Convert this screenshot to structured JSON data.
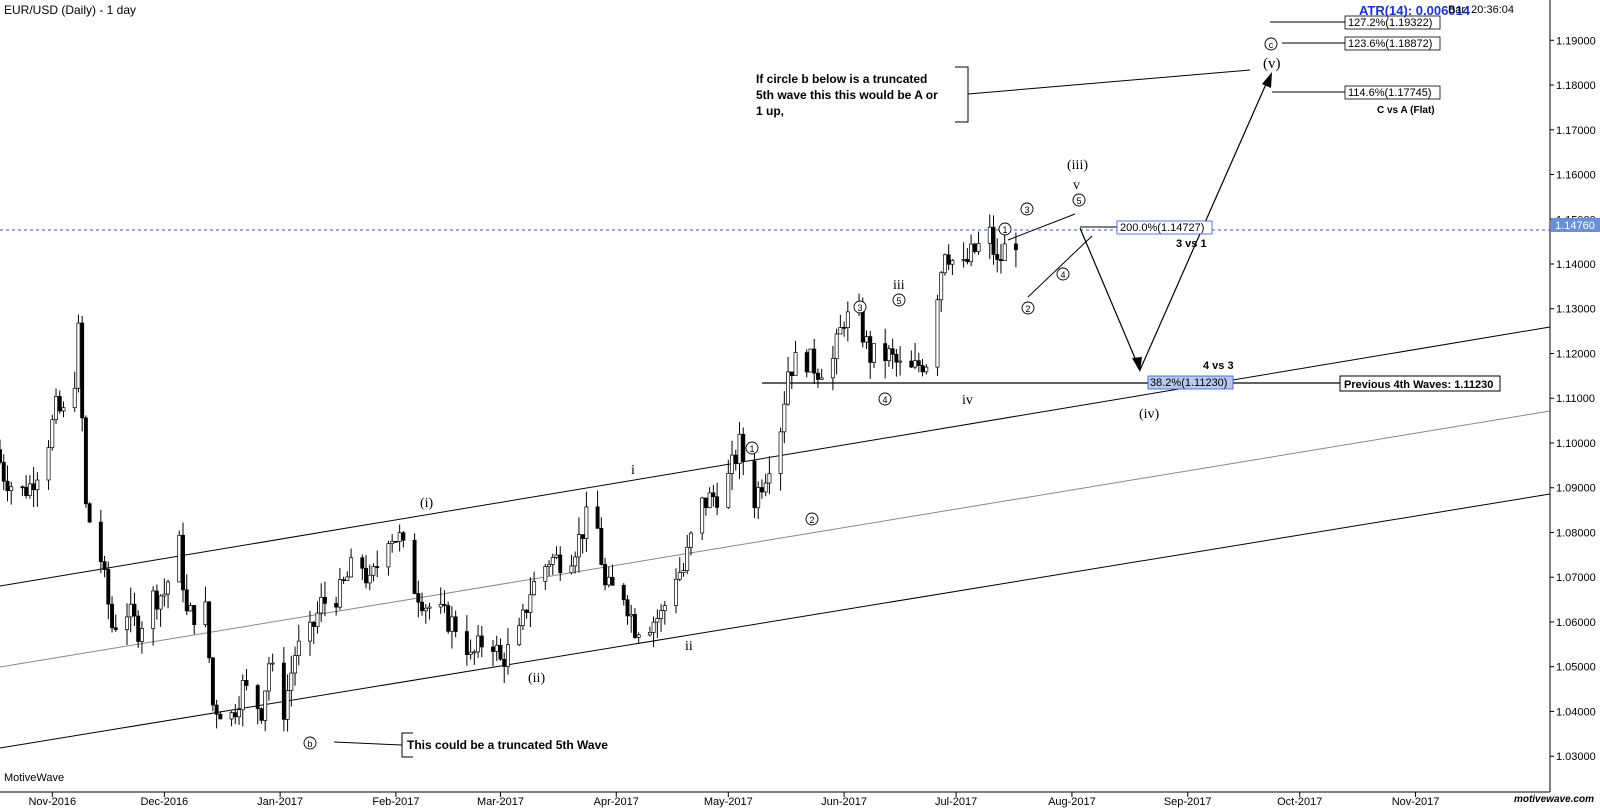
{
  "header": {
    "title": "EUR/USD (Daily) - 1 day",
    "atr": "ATR(14): 0.006014",
    "bar_time": "Bar: 20:36:04"
  },
  "footer": {
    "brand": "MotiveWave",
    "domain": "motivewave.com"
  },
  "colors": {
    "bull": "#ffffff",
    "bear": "#000000",
    "price_line": "#3355dd",
    "price_badge": "#6b8fd6",
    "fib_badge": "#b8c8ee",
    "channel": "#000000",
    "mid_channel": "#888888"
  },
  "chart_data": {
    "type": "candlestick",
    "title": "EUR/USD (Daily) - 1 day",
    "xlabel": "",
    "ylabel": "",
    "ylim": [
      1.022,
      1.199
    ],
    "x_range": [
      "2016-10-18",
      "2017-12-07"
    ],
    "grid": false,
    "x_ticks": [
      {
        "date": "2016-11-01",
        "label": "Nov-2016"
      },
      {
        "date": "2016-12-01",
        "label": "Dec-2016"
      },
      {
        "date": "2017-01-01",
        "label": "Jan-2017"
      },
      {
        "date": "2017-02-01",
        "label": "Feb-2017"
      },
      {
        "date": "2017-03-01",
        "label": "Mar-2017"
      },
      {
        "date": "2017-04-01",
        "label": "Apr-2017"
      },
      {
        "date": "2017-05-01",
        "label": "May-2017"
      },
      {
        "date": "2017-06-01",
        "label": "Jun-2017"
      },
      {
        "date": "2017-07-01",
        "label": "Jul-2017"
      },
      {
        "date": "2017-08-01",
        "label": "Aug-2017"
      },
      {
        "date": "2017-09-01",
        "label": "Sep-2017"
      },
      {
        "date": "2017-10-01",
        "label": "Oct-2017"
      },
      {
        "date": "2017-11-01",
        "label": "Nov-2017"
      }
    ],
    "y_ticks": [
      "1.19000",
      "1.18000",
      "1.17000",
      "1.16000",
      "1.15000",
      "1.14000",
      "1.13000",
      "1.12000",
      "1.11000",
      "1.10000",
      "1.09000",
      "1.08000",
      "1.07000",
      "1.06000",
      "1.05000",
      "1.04000",
      "1.03000"
    ],
    "current_price": {
      "value": 1.1476,
      "label": "1.14760"
    },
    "series": [
      {
        "date": "2016-10-18",
        "close": 1.0985
      },
      {
        "date": "2016-10-20",
        "close": 1.093
      },
      {
        "date": "2016-10-24",
        "close": 1.0885
      },
      {
        "date": "2016-10-27",
        "close": 1.0905
      },
      {
        "date": "2016-10-31",
        "close": 1.0975
      },
      {
        "date": "2016-11-03",
        "close": 1.1075
      },
      {
        "date": "2016-11-07",
        "close": 1.105
      },
      {
        "date": "2016-11-09",
        "close": 1.1245
      },
      {
        "date": "2016-11-11",
        "close": 1.0855
      },
      {
        "date": "2016-11-15",
        "close": 1.074
      },
      {
        "date": "2016-11-18",
        "close": 1.059
      },
      {
        "date": "2016-11-22",
        "close": 1.0625
      },
      {
        "date": "2016-11-25",
        "close": 1.0585
      },
      {
        "date": "2016-11-29",
        "close": 1.0655
      },
      {
        "date": "2016-12-02",
        "close": 1.0665
      },
      {
        "date": "2016-12-06",
        "close": 1.077
      },
      {
        "date": "2016-12-08",
        "close": 1.0615
      },
      {
        "date": "2016-12-13",
        "close": 1.0625
      },
      {
        "date": "2016-12-15",
        "close": 1.0415
      },
      {
        "date": "2016-12-20",
        "close": 1.039
      },
      {
        "date": "2016-12-23",
        "close": 1.0455
      },
      {
        "date": "2016-12-28",
        "close": 1.0405
      },
      {
        "date": "2016-12-30",
        "close": 1.051
      },
      {
        "date": "2017-01-03",
        "close": 1.0405
      },
      {
        "date": "2017-01-06",
        "close": 1.053
      },
      {
        "date": "2017-01-10",
        "close": 1.057
      },
      {
        "date": "2017-01-13",
        "close": 1.064
      },
      {
        "date": "2017-01-18",
        "close": 1.0665
      },
      {
        "date": "2017-01-23",
        "close": 1.075
      },
      {
        "date": "2017-01-26",
        "close": 1.068
      },
      {
        "date": "2017-01-31",
        "close": 1.08
      },
      {
        "date": "2017-02-03",
        "close": 1.0785
      },
      {
        "date": "2017-02-07",
        "close": 1.068
      },
      {
        "date": "2017-02-10",
        "close": 1.064
      },
      {
        "date": "2017-02-15",
        "close": 1.061
      },
      {
        "date": "2017-02-20",
        "close": 1.058
      },
      {
        "date": "2017-02-22",
        "close": 1.0515
      },
      {
        "date": "2017-02-27",
        "close": 1.058
      },
      {
        "date": "2017-03-02",
        "close": 1.051
      },
      {
        "date": "2017-03-07",
        "close": 1.057
      },
      {
        "date": "2017-03-10",
        "close": 1.067
      },
      {
        "date": "2017-03-15",
        "close": 1.074
      },
      {
        "date": "2017-03-20",
        "close": 1.074
      },
      {
        "date": "2017-03-23",
        "close": 1.0785
      },
      {
        "date": "2017-03-27",
        "close": 1.087
      },
      {
        "date": "2017-03-30",
        "close": 1.0675
      },
      {
        "date": "2017-04-04",
        "close": 1.0665
      },
      {
        "date": "2017-04-07",
        "close": 1.059
      },
      {
        "date": "2017-04-11",
        "close": 1.06
      },
      {
        "date": "2017-04-14",
        "close": 1.0615
      },
      {
        "date": "2017-04-18",
        "close": 1.071
      },
      {
        "date": "2017-04-20",
        "close": 1.0715
      },
      {
        "date": "2017-04-24",
        "close": 1.0855
      },
      {
        "date": "2017-04-27",
        "close": 1.0875
      },
      {
        "date": "2017-05-01",
        "close": 1.0895
      },
      {
        "date": "2017-05-05",
        "close": 1.0995
      },
      {
        "date": "2017-05-09",
        "close": 1.0875
      },
      {
        "date": "2017-05-12",
        "close": 1.0935
      },
      {
        "date": "2017-05-16",
        "close": 1.104
      },
      {
        "date": "2017-05-18",
        "close": 1.1165
      },
      {
        "date": "2017-05-22",
        "close": 1.1195
      },
      {
        "date": "2017-05-26",
        "close": 1.1165
      },
      {
        "date": "2017-05-30",
        "close": 1.1185
      },
      {
        "date": "2017-06-02",
        "close": 1.128
      },
      {
        "date": "2017-06-06",
        "close": 1.127
      },
      {
        "date": "2017-06-09",
        "close": 1.1195
      },
      {
        "date": "2017-06-14",
        "close": 1.1195
      },
      {
        "date": "2017-06-19",
        "close": 1.115
      },
      {
        "date": "2017-06-22",
        "close": 1.1175
      },
      {
        "date": "2017-06-26",
        "close": 1.1195
      },
      {
        "date": "2017-06-27",
        "close": 1.134
      },
      {
        "date": "2017-06-29",
        "close": 1.144
      },
      {
        "date": "2017-07-03",
        "close": 1.1375
      },
      {
        "date": "2017-07-06",
        "close": 1.142
      },
      {
        "date": "2017-07-11",
        "close": 1.1465
      },
      {
        "date": "2017-07-13",
        "close": 1.1395
      },
      {
        "date": "2017-07-17",
        "close": 1.147
      },
      {
        "date": "2017-07-18",
        "close": 1.1456
      }
    ]
  },
  "annotations": {
    "wave_labels": [
      {
        "id": "wave-i-minor",
        "text": "(i)"
      },
      {
        "id": "wave-ii-minor",
        "text": "(ii)"
      },
      {
        "id": "wave-iii-minor",
        "text": "(iii)"
      },
      {
        "id": "wave-iv-minor",
        "text": "(iv)"
      },
      {
        "id": "wave-v-minor",
        "text": "(v)"
      },
      {
        "id": "wave-i",
        "text": "i"
      },
      {
        "id": "wave-ii",
        "text": "ii"
      },
      {
        "id": "wave-iii",
        "text": "iii"
      },
      {
        "id": "wave-iv",
        "text": "iv"
      },
      {
        "id": "wave-v",
        "text": "v"
      }
    ],
    "circled_labels": [
      "b",
      "1",
      "2",
      "3",
      "4",
      "5",
      "c"
    ],
    "notes": {
      "truncated": "This could be a truncated 5th Wave",
      "alt_line1": "If circle b below is a truncated",
      "alt_line2": "5th wave this this would be A or",
      "alt_line3": "1 up,",
      "prev_4th": "Previous 4th Waves: 1.11230",
      "three_vs_one": "3 vs 1",
      "four_vs_three": "4 vs 3",
      "c_vs_a": "C vs A (Flat)"
    },
    "fibs": {
      "f1272": "127.2%(1.19322)",
      "f1236": "123.6%(1.18872)",
      "f1146": "114.6%(1.17745)",
      "f200": "200.0%(1.14727)",
      "f382": "38.2%(1.11230)"
    }
  }
}
